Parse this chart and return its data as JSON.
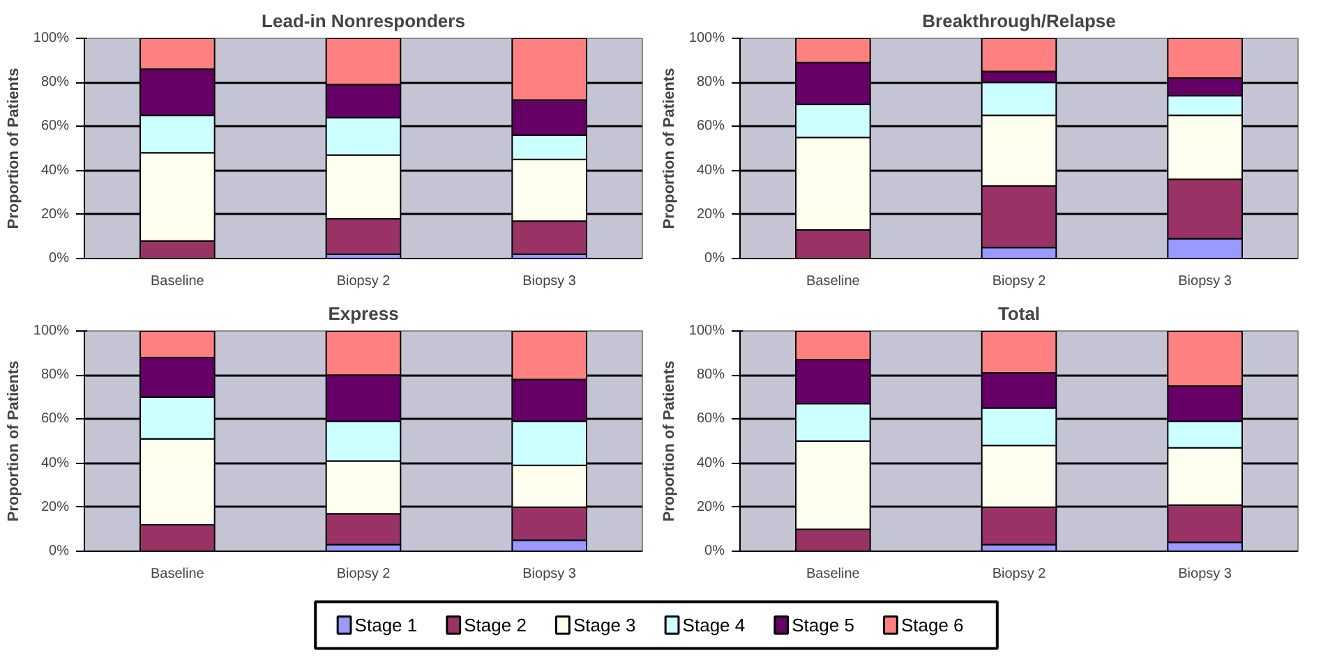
{
  "chart_data": [
    {
      "type": "bar",
      "stacked": true,
      "title": "Lead-in Nonresponders",
      "ylabel": "Proportion of Patients",
      "categories": [
        "Baseline",
        "Biopsy 2",
        "Biopsy 3"
      ],
      "ylim": [
        0,
        100
      ],
      "yticks": [
        {
          "value": 0,
          "label": "0%"
        },
        {
          "value": 20,
          "label": "20%"
        },
        {
          "value": 40,
          "label": "40%"
        },
        {
          "value": 60,
          "label": "60%"
        },
        {
          "value": 80,
          "label": "80%"
        },
        {
          "value": 100,
          "label": "100%"
        }
      ],
      "grid": "y",
      "series": [
        {
          "color": "#9999ff",
          "values": [
            0,
            2,
            2
          ]
        },
        {
          "color": "#993366",
          "values": [
            8,
            16,
            15
          ]
        },
        {
          "color": "#fffff0",
          "values": [
            40,
            29,
            28
          ]
        },
        {
          "color": "#ccffff",
          "values": [
            17,
            17,
            11
          ]
        },
        {
          "color": "#660066",
          "values": [
            21,
            15,
            16
          ]
        },
        {
          "color": "#ff8080",
          "values": [
            14,
            21,
            28
          ]
        }
      ]
    },
    {
      "type": "bar",
      "stacked": true,
      "title": "Breakthrough/Relapse",
      "ylabel": "Proportion of Patients",
      "categories": [
        "Baseline",
        "Biopsy 2",
        "Biopsy 3"
      ],
      "ylim": [
        0,
        100
      ],
      "yticks": [
        {
          "value": 0,
          "label": "0%"
        },
        {
          "value": 20,
          "label": "20%"
        },
        {
          "value": 40,
          "label": "40%"
        },
        {
          "value": 60,
          "label": "60%"
        },
        {
          "value": 80,
          "label": "80%"
        },
        {
          "value": 100,
          "label": "100%"
        }
      ],
      "grid": "y",
      "series": [
        {
          "color": "#9999ff",
          "values": [
            0,
            5,
            9
          ]
        },
        {
          "color": "#993366",
          "values": [
            13,
            28,
            27
          ]
        },
        {
          "color": "#fffff0",
          "values": [
            42,
            32,
            29
          ]
        },
        {
          "color": "#ccffff",
          "values": [
            15,
            15,
            9
          ]
        },
        {
          "color": "#660066",
          "values": [
            19,
            5,
            8
          ]
        },
        {
          "color": "#ff8080",
          "values": [
            11,
            15,
            18
          ]
        }
      ]
    },
    {
      "type": "bar",
      "stacked": true,
      "title": "Express",
      "ylabel": "Proportion of Patients",
      "categories": [
        "Baseline",
        "Biopsy 2",
        "Biopsy 3"
      ],
      "ylim": [
        0,
        100
      ],
      "yticks": [
        {
          "value": 0,
          "label": "0%"
        },
        {
          "value": 20,
          "label": "20%"
        },
        {
          "value": 40,
          "label": "40%"
        },
        {
          "value": 60,
          "label": "60%"
        },
        {
          "value": 80,
          "label": "80%"
        },
        {
          "value": 100,
          "label": "100%"
        }
      ],
      "grid": "y",
      "series": [
        {
          "color": "#9999ff",
          "values": [
            0,
            3,
            5
          ]
        },
        {
          "color": "#993366",
          "values": [
            12,
            14,
            15
          ]
        },
        {
          "color": "#fffff0",
          "values": [
            39,
            24,
            19
          ]
        },
        {
          "color": "#ccffff",
          "values": [
            19,
            18,
            20
          ]
        },
        {
          "color": "#660066",
          "values": [
            18,
            21,
            19
          ]
        },
        {
          "color": "#ff8080",
          "values": [
            12,
            20,
            22
          ]
        }
      ]
    },
    {
      "type": "bar",
      "stacked": true,
      "title": "Total",
      "ylabel": "Proportion of Patients",
      "categories": [
        "Baseline",
        "Biopsy 2",
        "Biopsy 3"
      ],
      "ylim": [
        0,
        100
      ],
      "yticks": [
        {
          "value": 0,
          "label": "0%"
        },
        {
          "value": 20,
          "label": "20%"
        },
        {
          "value": 40,
          "label": "40%"
        },
        {
          "value": 60,
          "label": "60%"
        },
        {
          "value": 80,
          "label": "80%"
        },
        {
          "value": 100,
          "label": "100%"
        }
      ],
      "grid": "y",
      "legend": "bottom",
      "series": [
        {
          "name": "Stage 1",
          "color": "#9999ff",
          "values": [
            0,
            3,
            4
          ]
        },
        {
          "name": "Stage 2",
          "color": "#993366",
          "values": [
            10,
            17,
            17
          ]
        },
        {
          "name": "Stage 3",
          "color": "#fffff0",
          "values": [
            40,
            28,
            26
          ]
        },
        {
          "name": "Stage 4",
          "color": "#ccffff",
          "values": [
            17,
            17,
            12
          ]
        },
        {
          "name": "Stage 5",
          "color": "#660066",
          "values": [
            20,
            16,
            16
          ]
        },
        {
          "name": "Stage 6",
          "color": "#ff8080",
          "values": [
            13,
            19,
            25
          ]
        }
      ]
    }
  ]
}
